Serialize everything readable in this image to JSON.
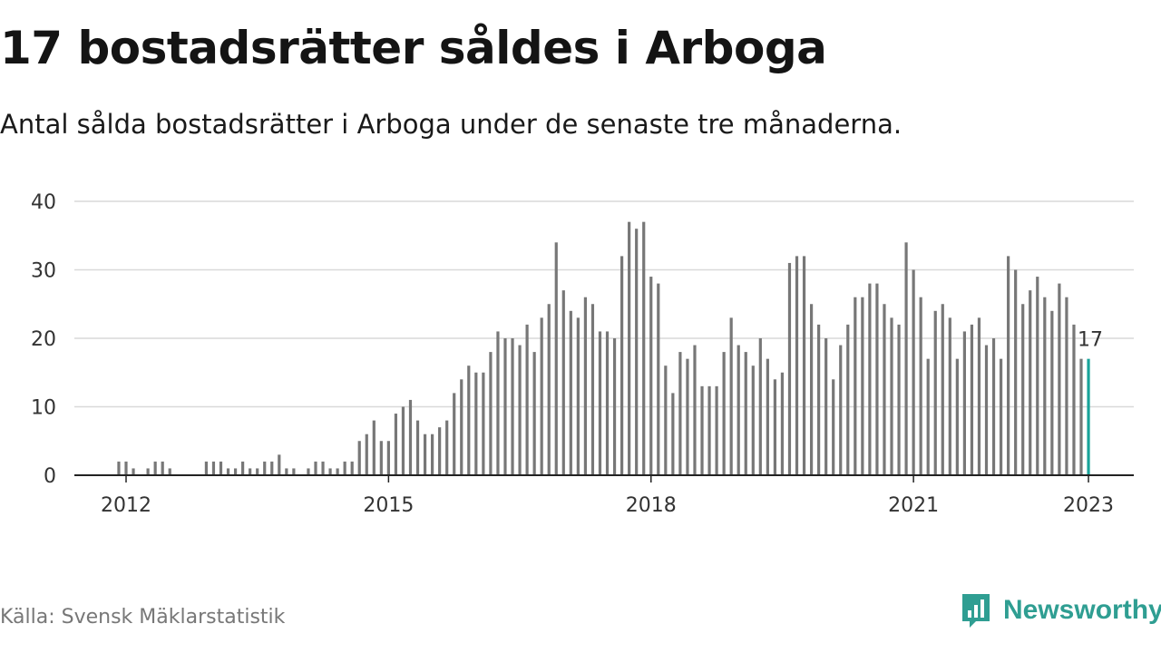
{
  "header": {
    "title": "17 bostadsrätter såldes i Arboga",
    "subtitle": "Antal sålda bostadsrätter i Arboga under de senaste tre månaderna."
  },
  "footer": {
    "source": "Källa: Svensk Mäklarstatistik",
    "brand": "Newsworthy"
  },
  "colors": {
    "bar": "#777777",
    "highlight": "#19a39a",
    "brand": "#2f9e92",
    "grid": "#d9d9d9",
    "axis": "#222222"
  },
  "chart_data": {
    "type": "bar",
    "x_start": "2011-12",
    "x_end": "2022-12",
    "values": [
      2,
      2,
      1,
      0,
      1,
      2,
      2,
      1,
      0,
      0,
      0,
      0,
      2,
      2,
      2,
      1,
      1,
      2,
      1,
      1,
      2,
      2,
      3,
      1,
      1,
      0,
      1,
      2,
      2,
      1,
      1,
      2,
      2,
      5,
      6,
      8,
      5,
      5,
      9,
      10,
      11,
      8,
      6,
      6,
      7,
      8,
      12,
      14,
      16,
      15,
      15,
      18,
      21,
      20,
      20,
      19,
      22,
      18,
      23,
      25,
      34,
      27,
      24,
      23,
      26,
      25,
      21,
      21,
      20,
      32,
      37,
      36,
      37,
      29,
      28,
      16,
      12,
      18,
      17,
      19,
      13,
      13,
      13,
      18,
      23,
      19,
      18,
      16,
      20,
      17,
      14,
      15,
      31,
      32,
      32,
      25,
      22,
      20,
      14,
      19,
      22,
      26,
      26,
      28,
      28,
      25,
      23,
      22,
      34,
      30,
      26,
      17,
      24,
      25,
      23,
      17,
      21,
      22,
      23,
      19,
      20,
      17,
      32,
      30,
      25,
      27,
      29,
      26,
      24,
      28,
      26,
      22,
      17,
      17
    ],
    "ylim": [
      0,
      40
    ],
    "yticks": [
      0,
      10,
      20,
      30,
      40
    ],
    "xticks": [
      "2012",
      "2015",
      "2018",
      "2021",
      "2023"
    ],
    "last_value_label": "17",
    "grid": true
  }
}
